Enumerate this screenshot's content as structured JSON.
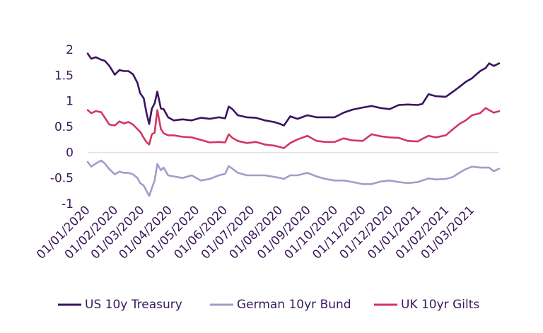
{
  "chart_data": {
    "type": "line",
    "title": "",
    "xlabel": "",
    "ylabel": "",
    "ylim": [
      -1,
      2
    ],
    "yticks": [
      -1,
      -0.5,
      0,
      0.5,
      1,
      1.5,
      2
    ],
    "ytick_labels": [
      "-1",
      "-0.5",
      "0",
      "0.5",
      "1",
      "1.5",
      "2"
    ],
    "x_start": "01/01/2020",
    "x_end": "31/03/2021",
    "xtick_labels": [
      "01/01/2020",
      "01/02/2020",
      "01/03/2020",
      "01/04/2020",
      "01/05/2020",
      "01/06/2020",
      "01/07/2020",
      "01/08/2020",
      "01/09/2020",
      "01/10/2020",
      "01/11/2020",
      "01/12/2020",
      "01/01/2021",
      "01/02/2021",
      "01/03/2021"
    ],
    "grid": false,
    "legend": "bottom",
    "series": [
      {
        "name": "US 10y Treasury",
        "color": "#3b1260",
        "x": [
          "01/01/2020",
          "05/01/2020",
          "10/01/2020",
          "16/01/2020",
          "20/01/2020",
          "25/01/2020",
          "31/01/2020",
          "05/02/2020",
          "10/02/2020",
          "15/02/2020",
          "20/02/2020",
          "25/02/2020",
          "28/02/2020",
          "03/03/2020",
          "06/03/2020",
          "09/03/2020",
          "12/03/2020",
          "15/03/2020",
          "18/03/2020",
          "22/03/2020",
          "25/03/2020",
          "30/03/2020",
          "05/04/2020",
          "15/04/2020",
          "25/04/2020",
          "05/05/2020",
          "15/05/2020",
          "25/05/2020",
          "01/06/2020",
          "05/06/2020",
          "09/06/2020",
          "15/06/2020",
          "25/06/2020",
          "05/07/2020",
          "15/07/2020",
          "25/07/2020",
          "01/08/2020",
          "05/08/2020",
          "12/08/2020",
          "20/08/2020",
          "31/08/2020",
          "10/09/2020",
          "20/09/2020",
          "30/09/2020",
          "10/10/2020",
          "20/10/2020",
          "31/10/2020",
          "10/11/2020",
          "20/11/2020",
          "30/11/2020",
          "10/12/2020",
          "20/12/2020",
          "31/12/2020",
          "05/01/2021",
          "12/01/2021",
          "20/01/2021",
          "31/01/2021",
          "08/02/2021",
          "15/02/2021",
          "22/02/2021",
          "01/03/2021",
          "10/03/2021",
          "16/03/2021",
          "20/03/2021",
          "25/03/2021",
          "31/03/2021"
        ],
        "values": [
          1.92,
          1.82,
          1.85,
          1.8,
          1.78,
          1.68,
          1.51,
          1.6,
          1.58,
          1.58,
          1.52,
          1.35,
          1.15,
          1.05,
          0.77,
          0.55,
          0.85,
          0.95,
          1.18,
          0.85,
          0.84,
          0.68,
          0.62,
          0.64,
          0.62,
          0.67,
          0.65,
          0.68,
          0.66,
          0.89,
          0.84,
          0.72,
          0.68,
          0.67,
          0.62,
          0.59,
          0.55,
          0.52,
          0.7,
          0.65,
          0.72,
          0.68,
          0.68,
          0.68,
          0.77,
          0.83,
          0.87,
          0.9,
          0.86,
          0.84,
          0.92,
          0.93,
          0.92,
          0.94,
          1.13,
          1.09,
          1.08,
          1.18,
          1.27,
          1.37,
          1.44,
          1.58,
          1.64,
          1.73,
          1.68,
          1.73
        ]
      },
      {
        "name": "German 10yr Bund",
        "color": "#a79ac9",
        "x": [
          "01/01/2020",
          "05/01/2020",
          "10/01/2020",
          "16/01/2020",
          "20/01/2020",
          "25/01/2020",
          "31/01/2020",
          "05/02/2020",
          "10/02/2020",
          "15/02/2020",
          "20/02/2020",
          "25/02/2020",
          "28/02/2020",
          "03/03/2020",
          "06/03/2020",
          "09/03/2020",
          "12/03/2020",
          "15/03/2020",
          "18/03/2020",
          "22/03/2020",
          "25/03/2020",
          "30/03/2020",
          "05/04/2020",
          "15/04/2020",
          "25/04/2020",
          "05/05/2020",
          "15/05/2020",
          "25/05/2020",
          "01/06/2020",
          "05/06/2020",
          "09/06/2020",
          "15/06/2020",
          "25/06/2020",
          "05/07/2020",
          "15/07/2020",
          "25/07/2020",
          "01/08/2020",
          "05/08/2020",
          "12/08/2020",
          "20/08/2020",
          "31/08/2020",
          "10/09/2020",
          "20/09/2020",
          "30/09/2020",
          "10/10/2020",
          "20/10/2020",
          "31/10/2020",
          "10/11/2020",
          "20/11/2020",
          "30/11/2020",
          "10/12/2020",
          "20/12/2020",
          "31/12/2020",
          "05/01/2021",
          "12/01/2021",
          "20/01/2021",
          "31/01/2021",
          "08/02/2021",
          "15/02/2021",
          "22/02/2021",
          "01/03/2021",
          "10/03/2021",
          "16/03/2021",
          "20/03/2021",
          "25/03/2021",
          "31/03/2021"
        ],
        "values": [
          -0.19,
          -0.28,
          -0.22,
          -0.16,
          -0.22,
          -0.33,
          -0.43,
          -0.38,
          -0.4,
          -0.4,
          -0.43,
          -0.5,
          -0.6,
          -0.65,
          -0.75,
          -0.85,
          -0.7,
          -0.55,
          -0.23,
          -0.35,
          -0.3,
          -0.45,
          -0.47,
          -0.5,
          -0.45,
          -0.55,
          -0.52,
          -0.45,
          -0.42,
          -0.27,
          -0.32,
          -0.4,
          -0.45,
          -0.45,
          -0.45,
          -0.48,
          -0.5,
          -0.52,
          -0.45,
          -0.45,
          -0.4,
          -0.47,
          -0.52,
          -0.55,
          -0.55,
          -0.58,
          -0.62,
          -0.62,
          -0.57,
          -0.55,
          -0.58,
          -0.6,
          -0.58,
          -0.55,
          -0.51,
          -0.53,
          -0.52,
          -0.48,
          -0.4,
          -0.33,
          -0.28,
          -0.3,
          -0.3,
          -0.3,
          -0.37,
          -0.32
        ]
      },
      {
        "name": "UK 10yr Gilts",
        "color": "#d43561",
        "x": [
          "01/01/2020",
          "05/01/2020",
          "10/01/2020",
          "16/01/2020",
          "20/01/2020",
          "25/01/2020",
          "31/01/2020",
          "05/02/2020",
          "10/02/2020",
          "15/02/2020",
          "20/02/2020",
          "25/02/2020",
          "28/02/2020",
          "03/03/2020",
          "06/03/2020",
          "09/03/2020",
          "12/03/2020",
          "15/03/2020",
          "18/03/2020",
          "22/03/2020",
          "25/03/2020",
          "30/03/2020",
          "05/04/2020",
          "15/04/2020",
          "25/04/2020",
          "05/05/2020",
          "15/05/2020",
          "25/05/2020",
          "01/06/2020",
          "05/06/2020",
          "09/06/2020",
          "15/06/2020",
          "25/06/2020",
          "05/07/2020",
          "15/07/2020",
          "25/07/2020",
          "01/08/2020",
          "05/08/2020",
          "12/08/2020",
          "20/08/2020",
          "31/08/2020",
          "10/09/2020",
          "20/09/2020",
          "30/09/2020",
          "10/10/2020",
          "20/10/2020",
          "31/10/2020",
          "10/11/2020",
          "20/11/2020",
          "30/11/2020",
          "10/12/2020",
          "20/12/2020",
          "31/12/2020",
          "05/01/2021",
          "12/01/2021",
          "20/01/2021",
          "31/01/2021",
          "08/02/2021",
          "15/02/2021",
          "22/02/2021",
          "01/03/2021",
          "10/03/2021",
          "16/03/2021",
          "20/03/2021",
          "25/03/2021",
          "31/03/2021"
        ],
        "values": [
          0.82,
          0.76,
          0.8,
          0.78,
          0.67,
          0.54,
          0.52,
          0.6,
          0.56,
          0.59,
          0.54,
          0.45,
          0.4,
          0.28,
          0.2,
          0.15,
          0.35,
          0.38,
          0.82,
          0.45,
          0.37,
          0.33,
          0.33,
          0.3,
          0.29,
          0.24,
          0.19,
          0.2,
          0.19,
          0.35,
          0.28,
          0.22,
          0.18,
          0.2,
          0.15,
          0.13,
          0.1,
          0.08,
          0.18,
          0.25,
          0.32,
          0.22,
          0.2,
          0.2,
          0.27,
          0.23,
          0.22,
          0.35,
          0.31,
          0.29,
          0.28,
          0.22,
          0.21,
          0.26,
          0.32,
          0.29,
          0.33,
          0.45,
          0.55,
          0.62,
          0.72,
          0.76,
          0.86,
          0.82,
          0.77,
          0.8
        ]
      }
    ]
  }
}
